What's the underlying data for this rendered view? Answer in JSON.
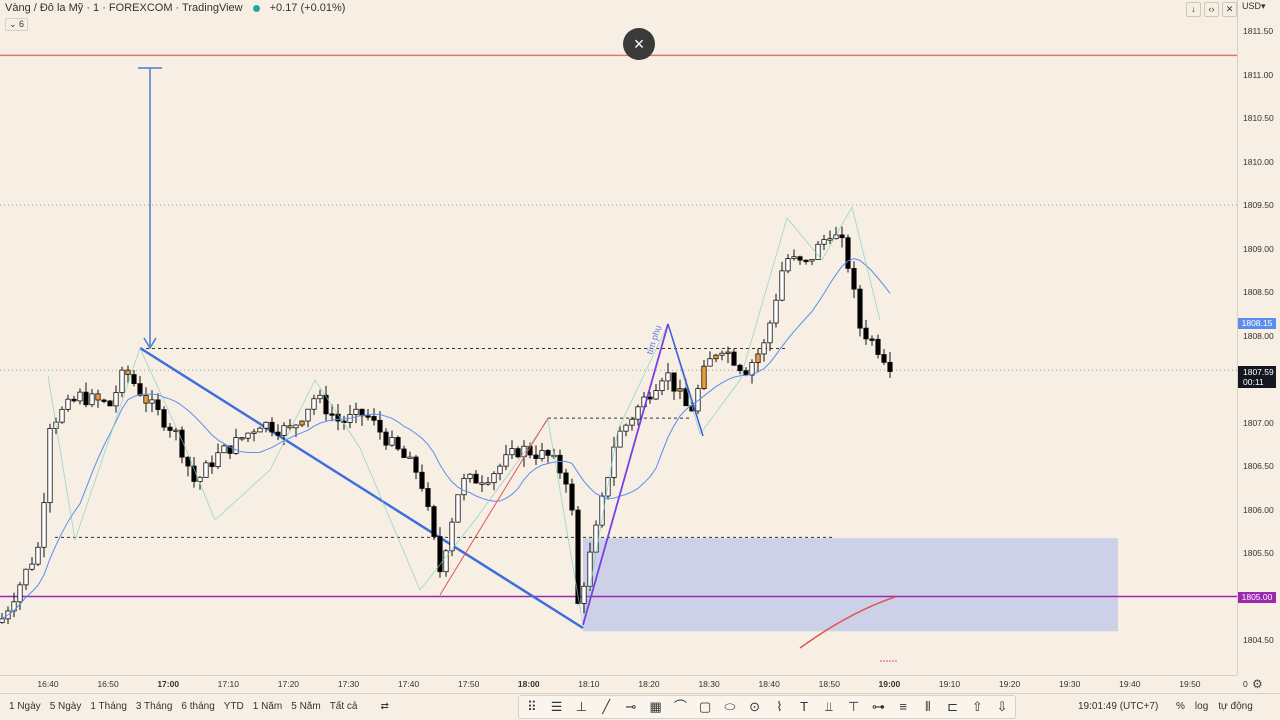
{
  "header": {
    "title": "Vàng / Đô la Mỹ · 1 · FOREXCOM · TradingView",
    "change": "+0.17 (+0.01%)",
    "indicator_toggle": "6",
    "close_label": "×"
  },
  "window_buttons": [
    "↓",
    "‹›",
    "✕",
    "◌"
  ],
  "price_scale": {
    "currency": "USD",
    "labels": [
      "1811.50",
      "1811.00",
      "1810.50",
      "1810.00",
      "1809.50",
      "1809.00",
      "1808.50",
      "1808.00",
      "1807.50",
      "1807.00",
      "1806.50",
      "1806.00",
      "1805.50",
      "1805.00",
      "1804.50",
      "0"
    ],
    "ma_tag": "1808.15",
    "price_tag": "1807.59",
    "countdown": "00:11",
    "level_tag": "1805.00"
  },
  "time_scale": {
    "labels": [
      "16:40",
      "16:50",
      "17:00",
      "17:10",
      "17:20",
      "17:30",
      "17:40",
      "17:50",
      "18:00",
      "18:10",
      "18:20",
      "18:30",
      "18:40",
      "18:50",
      "19:00",
      "19:10",
      "19:20",
      "19:30",
      "19:40",
      "19:50"
    ],
    "bold": [
      "17:00",
      "18:00",
      "19:00"
    ]
  },
  "chart_data": {
    "type": "candlestick",
    "symbol": "XAUUSD",
    "interval": "1",
    "ylim": [
      1804.4,
      1811.8
    ],
    "horizontal_lines": [
      {
        "price": 1811.22,
        "color": "#e57373"
      },
      {
        "price": 1805.0,
        "color": "#9c27b0"
      },
      {
        "price": 1809.5,
        "color": "#9e9e9e",
        "dotted": true
      },
      {
        "price": 1807.6,
        "color": "#9e9e9e",
        "dotted": true
      }
    ],
    "annotation_text": "tím phụ",
    "ma_color": "#5b8def",
    "up_color": "#ffffff",
    "down_color": "#000000",
    "highlight_color": "#f29d38"
  },
  "bottom": {
    "ranges": [
      "1 Ngày",
      "5 Ngày",
      "1 Tháng",
      "3 Tháng",
      "6 tháng",
      "YTD",
      "1 Năm",
      "5 Năm",
      "Tất cả"
    ],
    "compare_icon": "⇄",
    "tools": [
      "⠿",
      "☰",
      "⊥",
      "╱",
      "⊸",
      "▦",
      "⌒",
      "▢",
      "⬭",
      "⊙",
      "⌇",
      "T",
      "⫫",
      "⊤",
      "⊶",
      "≡",
      "⫴",
      "⊏",
      "⇧",
      "⇩"
    ],
    "clock": "19:01:49 (UTC+7)",
    "percent": "%",
    "log": "log",
    "auto": "tự động"
  }
}
